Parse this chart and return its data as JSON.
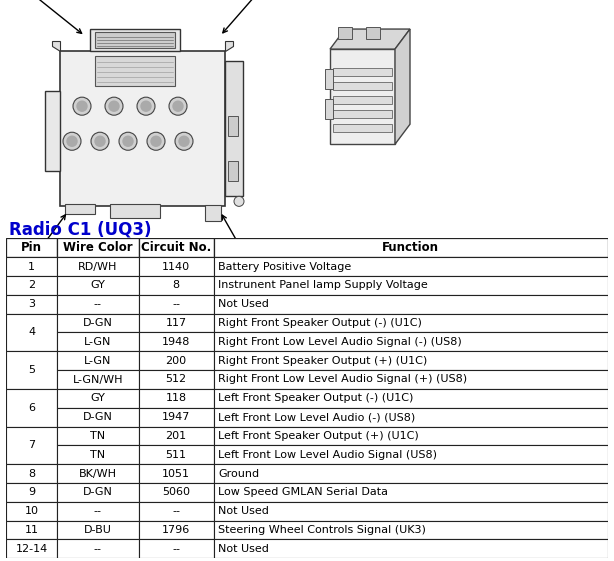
{
  "title": "Radio C1 (UQ3)",
  "headers": [
    "Pin",
    "Wire Color",
    "Circuit No.",
    "Function"
  ],
  "rows": [
    [
      "1",
      "RD/WH",
      "1140",
      "Battery Positive Voltage"
    ],
    [
      "2",
      "GY",
      "8",
      "Instrunent Panel lamp Supply Voltage"
    ],
    [
      "3",
      "--",
      "--",
      "Not Used"
    ],
    [
      "4",
      "D-GN",
      "117",
      "Right Front Speaker Output (-) (U1C)"
    ],
    [
      "4",
      "L-GN",
      "1948",
      "Right Front Low Level Audio Signal (-) (US8)"
    ],
    [
      "5",
      "L-GN",
      "200",
      "Right Front Speaker Output (+) (U1C)"
    ],
    [
      "5",
      "L-GN/WH",
      "512",
      "Right Front Low Level Audio Signal (+) (US8)"
    ],
    [
      "6",
      "GY",
      "118",
      "Left Front Speaker Output (-) (U1C)"
    ],
    [
      "6",
      "D-GN",
      "1947",
      "Left Front Low Level Audio (-) (US8)"
    ],
    [
      "7",
      "TN",
      "201",
      "Left Front Speaker Output (+) (U1C)"
    ],
    [
      "7",
      "TN",
      "511",
      "Left Front Low Level Audio Signal (US8)"
    ],
    [
      "8",
      "BK/WH",
      "1051",
      "Ground"
    ],
    [
      "9",
      "D-GN",
      "5060",
      "Low Speed GMLAN Serial Data"
    ],
    [
      "10",
      "--",
      "--",
      "Not Used"
    ],
    [
      "11",
      "D-BU",
      "1796",
      "Steering Wheel Controls Signal (UK3)"
    ],
    [
      "12-14",
      "--",
      "--",
      "Not Used"
    ]
  ],
  "bg_color": "#ffffff",
  "title_color": "#0000cc",
  "title_fontsize": 12,
  "header_fontsize": 8.5,
  "cell_fontsize": 8,
  "fig_width": 6.14,
  "fig_height": 5.61
}
